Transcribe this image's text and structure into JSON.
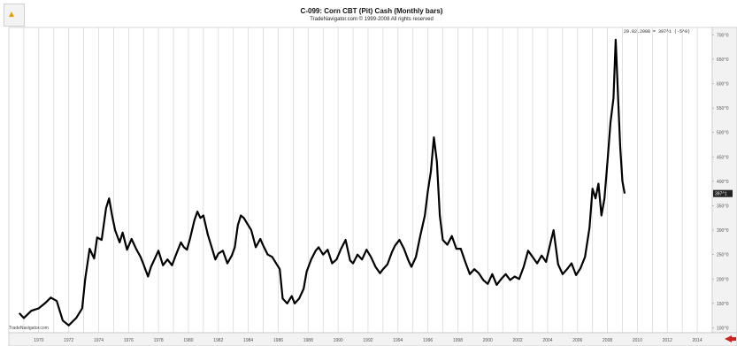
{
  "header": {
    "title": "C-099:  Corn CBT (Pit) Cash  (Monthly bars)",
    "subtitle": "TradeNavigator.com © 1999-2008 All rights reserved",
    "corner_note": "29.02.2008 = 397^1 (-5^0)",
    "watermark": "TradeNavigator.com",
    "current_price_label": "397^1"
  },
  "colors": {
    "line": "#000000",
    "grid": "#d4d4d4",
    "axis_bg": "#f2f2f2",
    "scroll_arrow": "#cc2222"
  },
  "chart_data": {
    "type": "line",
    "title": "C-099:  Corn CBT (Pit) Cash  (Monthly bars)",
    "xlabel": "",
    "ylabel": "",
    "x_ticks": [
      "1970",
      "1972",
      "1974",
      "1976",
      "1978",
      "1980",
      "1982",
      "1984",
      "1986",
      "1988",
      "1990",
      "1992",
      "1994",
      "1996",
      "1998",
      "2000",
      "2002",
      "2004",
      "2006",
      "2008",
      "2010",
      "2012",
      "2014"
    ],
    "y_ticks": [
      "100^0",
      "150^0",
      "200^0",
      "250^0",
      "300^0",
      "350^0",
      "400^0",
      "450^0",
      "500^0",
      "550^0",
      "600^0",
      "650^0",
      "700^0"
    ],
    "ylim": [
      90,
      715
    ],
    "xlim": [
      1968.0,
      2015.0
    ],
    "grid": "vertical",
    "series": [
      {
        "points": [
          [
            1968.7,
            130
          ],
          [
            1969.0,
            120
          ],
          [
            1969.5,
            135
          ],
          [
            1970.0,
            140
          ],
          [
            1970.4,
            150
          ],
          [
            1970.8,
            162
          ],
          [
            1971.2,
            155
          ],
          [
            1971.6,
            115
          ],
          [
            1972.0,
            105
          ],
          [
            1972.5,
            120
          ],
          [
            1972.9,
            140
          ],
          [
            1973.1,
            200
          ],
          [
            1973.4,
            262
          ],
          [
            1973.7,
            242
          ],
          [
            1973.9,
            285
          ],
          [
            1974.2,
            280
          ],
          [
            1974.5,
            345
          ],
          [
            1974.7,
            365
          ],
          [
            1974.9,
            330
          ],
          [
            1975.1,
            300
          ],
          [
            1975.4,
            275
          ],
          [
            1975.6,
            295
          ],
          [
            1975.9,
            260
          ],
          [
            1976.2,
            282
          ],
          [
            1976.5,
            262
          ],
          [
            1976.8,
            245
          ],
          [
            1977.0,
            230
          ],
          [
            1977.3,
            205
          ],
          [
            1977.5,
            225
          ],
          [
            1977.8,
            245
          ],
          [
            1978.0,
            258
          ],
          [
            1978.3,
            228
          ],
          [
            1978.6,
            240
          ],
          [
            1978.9,
            228
          ],
          [
            1979.2,
            252
          ],
          [
            1979.5,
            275
          ],
          [
            1979.7,
            265
          ],
          [
            1979.9,
            260
          ],
          [
            1980.1,
            282
          ],
          [
            1980.4,
            320
          ],
          [
            1980.6,
            338
          ],
          [
            1980.8,
            325
          ],
          [
            1981.0,
            330
          ],
          [
            1981.3,
            290
          ],
          [
            1981.5,
            270
          ],
          [
            1981.8,
            240
          ],
          [
            1982.0,
            252
          ],
          [
            1982.3,
            258
          ],
          [
            1982.6,
            232
          ],
          [
            1982.9,
            248
          ],
          [
            1983.1,
            265
          ],
          [
            1983.3,
            310
          ],
          [
            1983.5,
            330
          ],
          [
            1983.7,
            325
          ],
          [
            1983.9,
            315
          ],
          [
            1984.2,
            300
          ],
          [
            1984.5,
            265
          ],
          [
            1984.8,
            282
          ],
          [
            1985.0,
            268
          ],
          [
            1985.3,
            250
          ],
          [
            1985.6,
            245
          ],
          [
            1985.9,
            230
          ],
          [
            1986.1,
            220
          ],
          [
            1986.3,
            160
          ],
          [
            1986.6,
            150
          ],
          [
            1986.9,
            165
          ],
          [
            1987.1,
            150
          ],
          [
            1987.4,
            160
          ],
          [
            1987.7,
            180
          ],
          [
            1987.9,
            215
          ],
          [
            1988.2,
            240
          ],
          [
            1988.5,
            258
          ],
          [
            1988.7,
            265
          ],
          [
            1989.0,
            250
          ],
          [
            1989.3,
            260
          ],
          [
            1989.6,
            232
          ],
          [
            1989.9,
            240
          ],
          [
            1990.2,
            262
          ],
          [
            1990.5,
            280
          ],
          [
            1990.8,
            238
          ],
          [
            1991.0,
            232
          ],
          [
            1991.3,
            250
          ],
          [
            1991.6,
            240
          ],
          [
            1991.9,
            260
          ],
          [
            1992.2,
            245
          ],
          [
            1992.5,
            225
          ],
          [
            1992.8,
            212
          ],
          [
            1993.0,
            220
          ],
          [
            1993.3,
            230
          ],
          [
            1993.6,
            255
          ],
          [
            1993.8,
            268
          ],
          [
            1994.1,
            280
          ],
          [
            1994.4,
            262
          ],
          [
            1994.7,
            238
          ],
          [
            1994.9,
            225
          ],
          [
            1995.2,
            245
          ],
          [
            1995.5,
            290
          ],
          [
            1995.8,
            330
          ],
          [
            1996.0,
            380
          ],
          [
            1996.2,
            420
          ],
          [
            1996.4,
            490
          ],
          [
            1996.6,
            440
          ],
          [
            1996.8,
            330
          ],
          [
            1997.0,
            280
          ],
          [
            1997.3,
            270
          ],
          [
            1997.6,
            288
          ],
          [
            1997.9,
            262
          ],
          [
            1998.2,
            262
          ],
          [
            1998.5,
            235
          ],
          [
            1998.8,
            210
          ],
          [
            1999.1,
            220
          ],
          [
            1999.4,
            212
          ],
          [
            1999.7,
            198
          ],
          [
            2000.0,
            190
          ],
          [
            2000.3,
            210
          ],
          [
            2000.6,
            188
          ],
          [
            2000.9,
            200
          ],
          [
            2001.2,
            210
          ],
          [
            2001.5,
            198
          ],
          [
            2001.8,
            205
          ],
          [
            2002.1,
            200
          ],
          [
            2002.4,
            225
          ],
          [
            2002.7,
            258
          ],
          [
            2003.0,
            245
          ],
          [
            2003.3,
            232
          ],
          [
            2003.6,
            248
          ],
          [
            2003.9,
            235
          ],
          [
            2004.2,
            275
          ],
          [
            2004.4,
            300
          ],
          [
            2004.7,
            230
          ],
          [
            2005.0,
            210
          ],
          [
            2005.3,
            220
          ],
          [
            2005.6,
            232
          ],
          [
            2005.9,
            208
          ],
          [
            2006.2,
            222
          ],
          [
            2006.5,
            245
          ],
          [
            2006.8,
            305
          ],
          [
            2007.0,
            385
          ],
          [
            2007.2,
            365
          ],
          [
            2007.4,
            395
          ],
          [
            2007.6,
            330
          ],
          [
            2007.8,
            365
          ],
          [
            2008.0,
            440
          ],
          [
            2008.2,
            520
          ],
          [
            2008.4,
            570
          ],
          [
            2008.55,
            690
          ],
          [
            2008.7,
            580
          ],
          [
            2008.85,
            470
          ],
          [
            2009.0,
            400
          ],
          [
            2009.15,
            375
          ]
        ]
      }
    ]
  }
}
